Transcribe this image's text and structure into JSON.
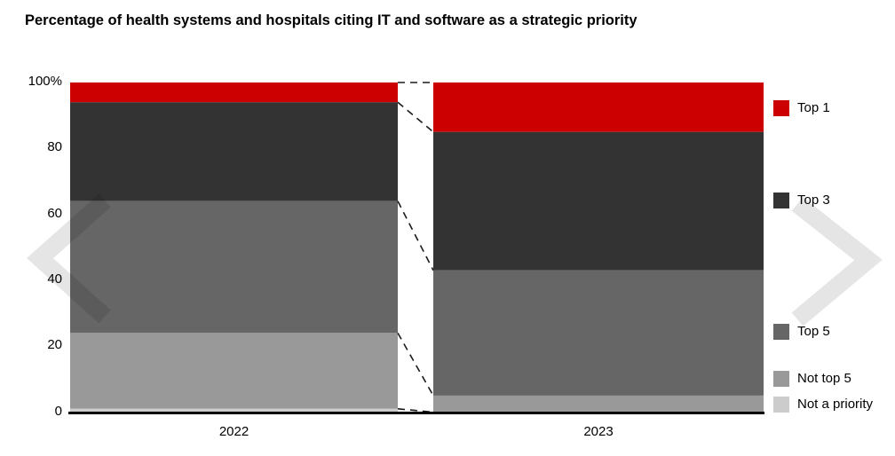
{
  "title": "Percentage of health systems and hospitals citing IT and software as a strategic priority",
  "chart_data": {
    "type": "bar",
    "stacked": true,
    "stack_order": "top-to-bottom",
    "title": "Percentage of health systems and hospitals citing IT and software as a strategic priority",
    "categories": [
      "2022",
      "2023"
    ],
    "series": [
      {
        "name": "Top 1",
        "color": "#cc0000",
        "values": [
          6,
          15
        ]
      },
      {
        "name": "Top 3",
        "color": "#333333",
        "values": [
          30,
          42
        ]
      },
      {
        "name": "Top 5",
        "color": "#666666",
        "values": [
          40,
          38
        ]
      },
      {
        "name": "Not top 5",
        "color": "#999999",
        "values": [
          23,
          5
        ]
      },
      {
        "name": "Not a priority",
        "color": "#cccccc",
        "values": [
          1,
          0
        ]
      }
    ],
    "ylim": [
      0,
      100
    ],
    "yticks": [
      {
        "value": 100,
        "label": "100%"
      },
      {
        "value": 80,
        "label": "80"
      },
      {
        "value": 60,
        "label": "60"
      },
      {
        "value": 40,
        "label": "40"
      },
      {
        "value": 20,
        "label": "20"
      },
      {
        "value": 0,
        "label": "0"
      }
    ],
    "xlabel": "",
    "ylabel": "",
    "grid": false,
    "legend_position": "right",
    "annotations": "dashed lines connect matching segment boundaries between the 2022 and 2023 bars"
  },
  "nav": {
    "previous_icon": "chevron-left-icon",
    "next_icon": "chevron-right-icon"
  },
  "colors": {
    "background": "#ffffff",
    "accent_red": "#cc0000",
    "axis": "#000000",
    "connector": "#1a1a1a",
    "chevron_overlay": "rgba(0,0,0,0.10)"
  }
}
